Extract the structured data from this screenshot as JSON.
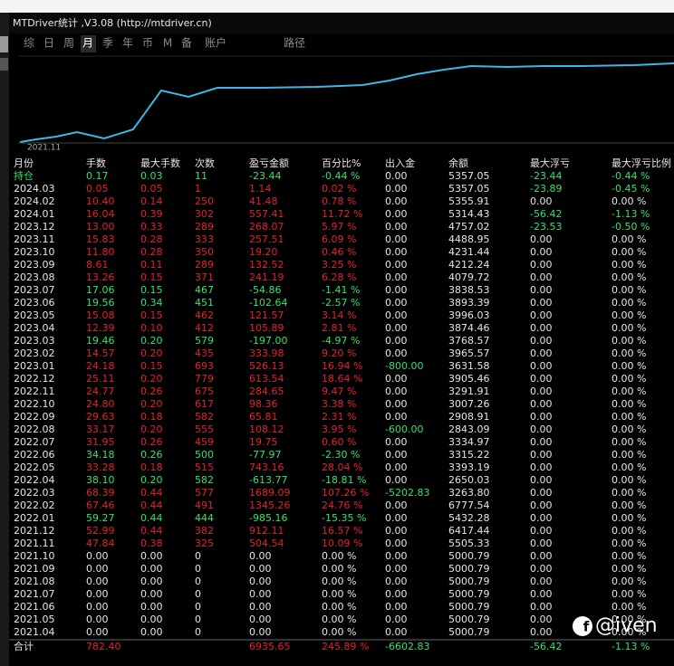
{
  "window": {
    "title": "MTDriver统计 ,V3.08 (http://mtdriver.cn)",
    "tabs": [
      "综",
      "日",
      "周",
      "月",
      "季",
      "年",
      "币",
      "M",
      "备",
      "账户",
      "路径"
    ],
    "active_tab": "月",
    "curve_label": "2021.11"
  },
  "table": {
    "headers": [
      "月份",
      "手数",
      "最大手数",
      "次数",
      "盈亏金额",
      "百分比%",
      "出入金",
      "余额",
      "最大浮亏",
      "最大浮亏比例"
    ],
    "rows": [
      {
        "color": "#35e06a",
        "cells": [
          "持仓",
          "0.17",
          "0.03",
          "11",
          "-23.44",
          "-0.44 %",
          "0.00",
          "5357.05",
          "-23.44",
          "-0.44 %"
        ]
      },
      {
        "color": "#e0232b",
        "cells": [
          "2024.03",
          "0.05",
          "0.05",
          "1",
          "1.14",
          "0.02 %",
          "0.00",
          "5357.05",
          "-23.89",
          "-0.45 %"
        ]
      },
      {
        "color": "#e0232b",
        "cells": [
          "2024.02",
          "10.40",
          "0.14",
          "250",
          "41.48",
          "0.78 %",
          "0.00",
          "5355.91",
          "0.00",
          "0.00 %"
        ]
      },
      {
        "color": "#e0232b",
        "cells": [
          "2024.01",
          "16.04",
          "0.39",
          "302",
          "557.41",
          "11.72 %",
          "0.00",
          "5314.43",
          "-56.42",
          "-1.13 %"
        ]
      },
      {
        "color": "#e0232b",
        "cells": [
          "2023.12",
          "13.00",
          "0.33",
          "289",
          "268.07",
          "5.97 %",
          "0.00",
          "4757.02",
          "-23.53",
          "-0.50 %"
        ]
      },
      {
        "color": "#e0232b",
        "cells": [
          "2023.11",
          "15.83",
          "0.28",
          "333",
          "257.51",
          "6.09 %",
          "0.00",
          "4488.95",
          "0.00",
          "0.00 %"
        ]
      },
      {
        "color": "#e0232b",
        "cells": [
          "2023.10",
          "11.80",
          "0.28",
          "350",
          "19.20",
          "0.46 %",
          "0.00",
          "4231.44",
          "0.00",
          "0.00 %"
        ]
      },
      {
        "color": "#e0232b",
        "cells": [
          "2023.09",
          "8.61",
          "0.11",
          "289",
          "132.52",
          "3.25 %",
          "0.00",
          "4212.24",
          "0.00",
          "0.00 %"
        ]
      },
      {
        "color": "#e0232b",
        "cells": [
          "2023.08",
          "13.26",
          "0.15",
          "371",
          "241.19",
          "6.28 %",
          "0.00",
          "4079.72",
          "0.00",
          "0.00 %"
        ]
      },
      {
        "color": "#35e06a",
        "cells": [
          "2023.07",
          "17.06",
          "0.15",
          "467",
          "-54.86",
          "-1.41 %",
          "0.00",
          "3838.53",
          "0.00",
          "0.00 %"
        ]
      },
      {
        "color": "#35e06a",
        "cells": [
          "2023.06",
          "19.56",
          "0.34",
          "451",
          "-102.64",
          "-2.57 %",
          "0.00",
          "3893.39",
          "0.00",
          "0.00 %"
        ]
      },
      {
        "color": "#e0232b",
        "cells": [
          "2023.05",
          "15.08",
          "0.15",
          "462",
          "121.57",
          "3.14 %",
          "0.00",
          "3996.03",
          "0.00",
          "0.00 %"
        ]
      },
      {
        "color": "#e0232b",
        "cells": [
          "2023.04",
          "12.39",
          "0.10",
          "412",
          "105.89",
          "2.81 %",
          "0.00",
          "3874.46",
          "0.00",
          "0.00 %"
        ]
      },
      {
        "color": "#35e06a",
        "cells": [
          "2023.03",
          "19.46",
          "0.20",
          "579",
          "-197.00",
          "-4.97 %",
          "0.00",
          "3768.57",
          "0.00",
          "0.00 %"
        ]
      },
      {
        "color": "#e0232b",
        "cells": [
          "2023.02",
          "14.57",
          "0.20",
          "435",
          "333.98",
          "9.20 %",
          "0.00",
          "3965.57",
          "0.00",
          "0.00 %"
        ]
      },
      {
        "color": "#e0232b",
        "cells": [
          "2023.01",
          "24.18",
          "0.15",
          "693",
          "526.13",
          "16.94 %",
          "-800.00",
          "3631.58",
          "0.00",
          "0.00 %"
        ]
      },
      {
        "color": "#e0232b",
        "cells": [
          "2022.12",
          "25.11",
          "0.20",
          "779",
          "613.54",
          "18.64 %",
          "0.00",
          "3905.46",
          "0.00",
          "0.00 %"
        ]
      },
      {
        "color": "#e0232b",
        "cells": [
          "2022.11",
          "24.77",
          "0.26",
          "675",
          "284.65",
          "9.47 %",
          "0.00",
          "3291.91",
          "0.00",
          "0.00 %"
        ]
      },
      {
        "color": "#e0232b",
        "cells": [
          "2022.10",
          "24.80",
          "0.20",
          "617",
          "98.36",
          "3.38 %",
          "0.00",
          "3007.26",
          "0.00",
          "0.00 %"
        ]
      },
      {
        "color": "#e0232b",
        "cells": [
          "2022.09",
          "29.63",
          "0.18",
          "582",
          "65.81",
          "2.31 %",
          "0.00",
          "2908.91",
          "0.00",
          "0.00 %"
        ]
      },
      {
        "color": "#e0232b",
        "cells": [
          "2022.08",
          "33.17",
          "0.20",
          "555",
          "108.12",
          "3.95 %",
          "-600.00",
          "2843.09",
          "0.00",
          "0.00 %"
        ]
      },
      {
        "color": "#e0232b",
        "cells": [
          "2022.07",
          "31.95",
          "0.26",
          "459",
          "19.75",
          "0.60 %",
          "0.00",
          "3334.97",
          "0.00",
          "0.00 %"
        ]
      },
      {
        "color": "#35e06a",
        "cells": [
          "2022.06",
          "34.18",
          "0.26",
          "500",
          "-77.97",
          "-2.30 %",
          "0.00",
          "3315.22",
          "0.00",
          "0.00 %"
        ]
      },
      {
        "color": "#e0232b",
        "cells": [
          "2022.05",
          "33.28",
          "0.18",
          "515",
          "743.16",
          "28.04 %",
          "0.00",
          "3393.19",
          "0.00",
          "0.00 %"
        ]
      },
      {
        "color": "#35e06a",
        "cells": [
          "2022.04",
          "38.10",
          "0.20",
          "582",
          "-613.77",
          "-18.81 %",
          "0.00",
          "2650.03",
          "0.00",
          "0.00 %"
        ]
      },
      {
        "color": "#e0232b",
        "cells": [
          "2022.03",
          "68.39",
          "0.44",
          "577",
          "1689.09",
          "107.26 %",
          "-5202.83",
          "3263.80",
          "0.00",
          "0.00 %"
        ]
      },
      {
        "color": "#e0232b",
        "cells": [
          "2022.02",
          "67.46",
          "0.44",
          "491",
          "1345.26",
          "24.76 %",
          "0.00",
          "6777.54",
          "0.00",
          "0.00 %"
        ]
      },
      {
        "color": "#35e06a",
        "cells": [
          "2022.01",
          "59.27",
          "0.44",
          "444",
          "-985.16",
          "-15.35 %",
          "0.00",
          "5432.28",
          "0.00",
          "0.00 %"
        ]
      },
      {
        "color": "#e0232b",
        "cells": [
          "2021.12",
          "52.99",
          "0.44",
          "382",
          "912.11",
          "16.57 %",
          "0.00",
          "6417.44",
          "0.00",
          "0.00 %"
        ]
      },
      {
        "color": "#e0232b",
        "cells": [
          "2021.11",
          "47.84",
          "0.38",
          "325",
          "504.54",
          "10.09 %",
          "0.00",
          "5505.33",
          "0.00",
          "0.00 %"
        ]
      },
      {
        "color": "#e6e6e6",
        "cells": [
          "2021.10",
          "0.00",
          "0.00",
          "0",
          "0.00",
          "0.00 %",
          "0.00",
          "5000.79",
          "0.00",
          "0.00 %"
        ]
      },
      {
        "color": "#e6e6e6",
        "cells": [
          "2021.09",
          "0.00",
          "0.00",
          "0",
          "0.00",
          "0.00 %",
          "0.00",
          "5000.79",
          "0.00",
          "0.00 %"
        ]
      },
      {
        "color": "#e6e6e6",
        "cells": [
          "2021.08",
          "0.00",
          "0.00",
          "0",
          "0.00",
          "0.00 %",
          "0.00",
          "5000.79",
          "0.00",
          "0.00 %"
        ]
      },
      {
        "color": "#e6e6e6",
        "cells": [
          "2021.07",
          "0.00",
          "0.00",
          "0",
          "0.00",
          "0.00 %",
          "0.00",
          "5000.79",
          "0.00",
          "0.00 %"
        ]
      },
      {
        "color": "#e6e6e6",
        "cells": [
          "2021.06",
          "0.00",
          "0.00",
          "0",
          "0.00",
          "0.00 %",
          "0.00",
          "5000.79",
          "0.00",
          "0.00 %"
        ]
      },
      {
        "color": "#e6e6e6",
        "cells": [
          "2021.05",
          "0.00",
          "0.00",
          "0",
          "0.00",
          "0.00 %",
          "0.00",
          "5000.79",
          "0.00",
          "0.00 %"
        ]
      },
      {
        "color": "#e6e6e6",
        "cells": [
          "2021.04",
          "0.00",
          "0.00",
          "0",
          "0.00",
          "0.00 %",
          "0.00",
          "5000.79",
          "0.00",
          "0.00 %"
        ]
      }
    ],
    "total": {
      "label": "合计",
      "lots": "782.40",
      "profit": "6935.65",
      "percent": "245.89 %",
      "deposit": "-6602.83",
      "max_dd": "-56.42",
      "max_dd_pct": "-1.13 %"
    }
  },
  "watermark": "@iven"
}
